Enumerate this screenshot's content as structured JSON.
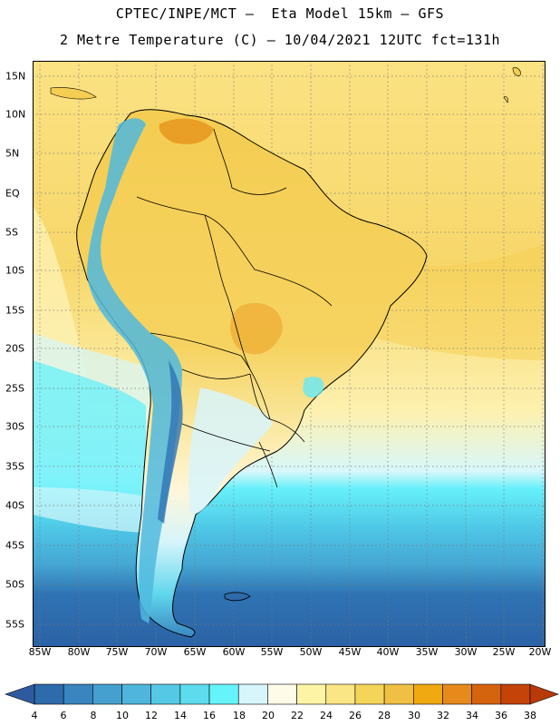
{
  "header": {
    "line1": "CPTEC/INPE/MCT –  Eta Model 15km – GFS",
    "line2": "2 Metre Temperature (C) – 10/04/2021 12UTC fct=131h"
  },
  "axes": {
    "longitudes": [
      "85W",
      "80W",
      "75W",
      "70W",
      "65W",
      "60W",
      "55W",
      "50W",
      "45W",
      "40W",
      "35W",
      "30W",
      "25W",
      "20W"
    ],
    "latitudes": [
      "15N",
      "10N",
      "5N",
      "EQ",
      "5S",
      "10S",
      "15S",
      "20S",
      "25S",
      "30S",
      "35S",
      "40S",
      "45S",
      "50S",
      "55S"
    ]
  },
  "legend": {
    "labels": [
      "4",
      "6",
      "8",
      "10",
      "12",
      "14",
      "16",
      "18",
      "20",
      "22",
      "24",
      "26",
      "28",
      "30",
      "32",
      "34",
      "36",
      "38"
    ],
    "colors": [
      "#2d6bab",
      "#3a84bf",
      "#45a0cf",
      "#4fb5dc",
      "#55c8e6",
      "#5cdced",
      "#66f4fb",
      "#d6f6fb",
      "#fffbe9",
      "#fdf4a6",
      "#fbe685",
      "#f5d45a",
      "#efc043",
      "#f0a910",
      "#e68a1c",
      "#d5640e",
      "#c34308"
    ],
    "low_color": "#2e5aa0",
    "high_color": "#b83a08"
  }
}
